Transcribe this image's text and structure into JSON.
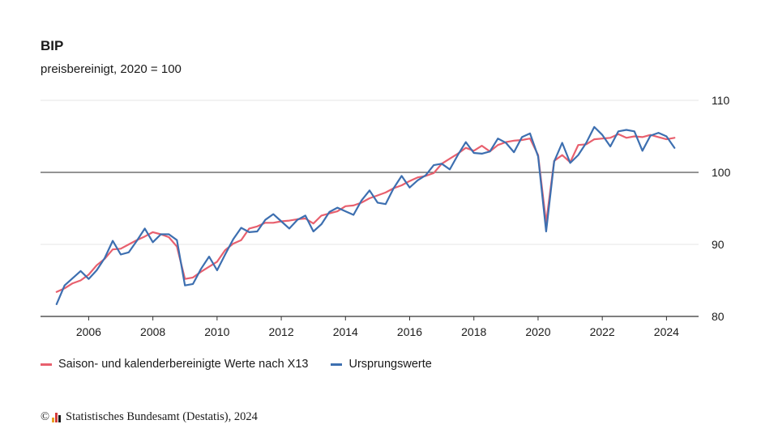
{
  "title": "BIP",
  "subtitle": "preisbereinigt, 2020 = 100",
  "chart_data": {
    "type": "line",
    "ylim": [
      80,
      110
    ],
    "yticks": [
      80,
      90,
      100,
      110
    ],
    "reference_line": 100,
    "xlim": [
      2004.5,
      2025.0
    ],
    "xticks": [
      2006,
      2008,
      2010,
      2012,
      2014,
      2016,
      2018,
      2020,
      2022,
      2024
    ],
    "grid": true,
    "legend_position": "bottom",
    "series": [
      {
        "name": "Saison- und kalenderbereinigte Werte nach X13",
        "color": "#e8606e",
        "x": [
          2005.0,
          2005.25,
          2005.5,
          2005.75,
          2006.0,
          2006.25,
          2006.5,
          2006.75,
          2007.0,
          2007.25,
          2007.5,
          2007.75,
          2008.0,
          2008.25,
          2008.5,
          2008.75,
          2009.0,
          2009.25,
          2009.5,
          2009.75,
          2010.0,
          2010.25,
          2010.5,
          2010.75,
          2011.0,
          2011.25,
          2011.5,
          2011.75,
          2012.0,
          2012.25,
          2012.5,
          2012.75,
          2013.0,
          2013.25,
          2013.5,
          2013.75,
          2014.0,
          2014.25,
          2014.5,
          2014.75,
          2015.0,
          2015.25,
          2015.5,
          2015.75,
          2016.0,
          2016.25,
          2016.5,
          2016.75,
          2017.0,
          2017.25,
          2017.5,
          2017.75,
          2018.0,
          2018.25,
          2018.5,
          2018.75,
          2019.0,
          2019.25,
          2019.5,
          2019.75,
          2020.0,
          2020.25,
          2020.5,
          2020.75,
          2021.0,
          2021.25,
          2021.5,
          2021.75,
          2022.0,
          2022.25,
          2022.5,
          2022.75,
          2023.0,
          2023.25,
          2023.5,
          2023.75,
          2024.0,
          2024.25
        ],
        "y": [
          83.4,
          83.9,
          84.6,
          85.0,
          85.8,
          87.1,
          88.0,
          89.3,
          89.4,
          90.0,
          90.6,
          91.1,
          91.7,
          91.4,
          91.0,
          89.7,
          85.2,
          85.4,
          86.2,
          86.9,
          87.6,
          89.2,
          90.1,
          90.6,
          92.2,
          92.5,
          93.0,
          93.0,
          93.2,
          93.3,
          93.5,
          93.6,
          92.9,
          94.0,
          94.3,
          94.6,
          95.3,
          95.4,
          95.8,
          96.4,
          96.8,
          97.2,
          97.8,
          98.2,
          98.8,
          99.3,
          99.5,
          99.9,
          101.2,
          101.9,
          102.6,
          103.4,
          103.0,
          103.7,
          102.9,
          103.8,
          104.2,
          104.4,
          104.5,
          104.7,
          102.4,
          93.0,
          101.6,
          102.4,
          101.4,
          103.8,
          103.9,
          104.6,
          104.7,
          104.8,
          105.3,
          104.8,
          105.0,
          104.9,
          105.2,
          104.9,
          104.6,
          104.8
        ]
      },
      {
        "name": "Ursprungswerte",
        "color": "#3d6fb0",
        "x": [
          2005.0,
          2005.25,
          2005.5,
          2005.75,
          2006.0,
          2006.25,
          2006.5,
          2006.75,
          2007.0,
          2007.25,
          2007.5,
          2007.75,
          2008.0,
          2008.25,
          2008.5,
          2008.75,
          2009.0,
          2009.25,
          2009.5,
          2009.75,
          2010.0,
          2010.25,
          2010.5,
          2010.75,
          2011.0,
          2011.25,
          2011.5,
          2011.75,
          2012.0,
          2012.25,
          2012.5,
          2012.75,
          2013.0,
          2013.25,
          2013.5,
          2013.75,
          2014.0,
          2014.25,
          2014.5,
          2014.75,
          2015.0,
          2015.25,
          2015.5,
          2015.75,
          2016.0,
          2016.25,
          2016.5,
          2016.75,
          2017.0,
          2017.25,
          2017.5,
          2017.75,
          2018.0,
          2018.25,
          2018.5,
          2018.75,
          2019.0,
          2019.25,
          2019.5,
          2019.75,
          2020.0,
          2020.25,
          2020.5,
          2020.75,
          2021.0,
          2021.25,
          2021.5,
          2021.75,
          2022.0,
          2022.25,
          2022.5,
          2022.75,
          2023.0,
          2023.25,
          2023.5,
          2023.75,
          2024.0,
          2024.25
        ],
        "y": [
          81.7,
          84.3,
          85.3,
          86.3,
          85.2,
          86.4,
          88.1,
          90.5,
          88.6,
          88.9,
          90.5,
          92.2,
          90.3,
          91.4,
          91.4,
          90.6,
          84.3,
          84.5,
          86.6,
          88.3,
          86.4,
          88.6,
          90.7,
          92.3,
          91.7,
          91.8,
          93.4,
          94.2,
          93.2,
          92.2,
          93.4,
          94.0,
          91.8,
          92.8,
          94.5,
          95.1,
          94.6,
          94.1,
          96.1,
          97.5,
          95.8,
          95.6,
          97.8,
          99.5,
          97.9,
          98.9,
          99.6,
          101.0,
          101.2,
          100.4,
          102.4,
          104.2,
          102.7,
          102.6,
          102.9,
          104.7,
          104.1,
          102.8,
          104.9,
          105.4,
          102.2,
          91.8,
          101.5,
          104.1,
          101.3,
          102.4,
          104.1,
          106.3,
          105.2,
          103.6,
          105.7,
          105.9,
          105.7,
          103.0,
          105.1,
          105.5,
          105.0,
          103.4
        ]
      }
    ]
  },
  "legend": {
    "items": [
      {
        "label": "Saison- und kalenderbereinigte Werte nach X13",
        "color": "#e8606e"
      },
      {
        "label": "Ursprungswerte",
        "color": "#3d6fb0"
      }
    ]
  },
  "footer": {
    "copyright_symbol": "©",
    "text": "Statistisches Bundesamt (Destatis), 2024",
    "logo_colors": [
      "#e8a020",
      "#d43c3c",
      "#1a1a1a"
    ]
  }
}
